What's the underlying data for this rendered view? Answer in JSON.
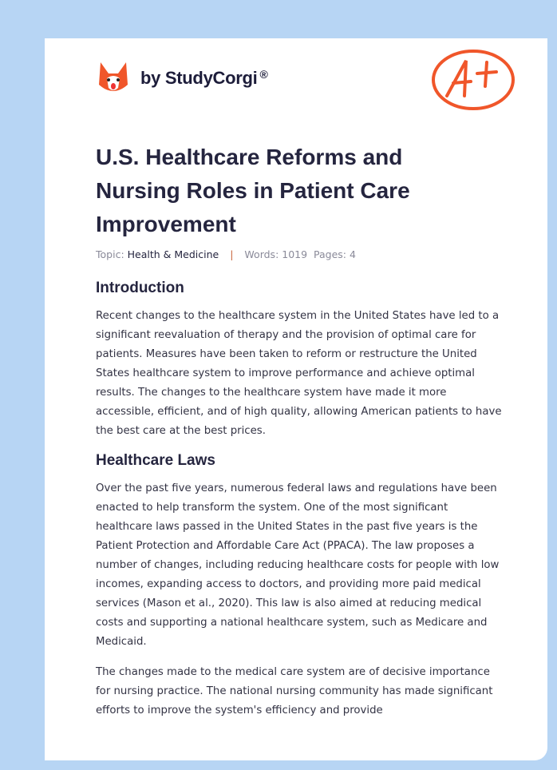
{
  "brand": {
    "name": "by StudyCorgi",
    "reg": "®",
    "grade": "A+"
  },
  "title": "U.S. Healthcare Reforms and Nursing Roles in Patient Care Improvement",
  "meta": {
    "topic_label": "Topic:",
    "topic": "Health & Medicine",
    "sep": "|",
    "words": "Words: 1019",
    "pages": "Pages: 4"
  },
  "sections": [
    {
      "heading": "Introduction",
      "paragraphs": [
        "Recent changes to the healthcare system in the United States have led to a significant reevaluation of therapy and the provision of optimal care for patients. Measures have been taken to reform or restructure the United States healthcare system to improve performance and achieve optimal results. The changes to the healthcare system have made it more accessible, efficient, and of high quality, allowing American patients to have the best care at the best prices."
      ]
    },
    {
      "heading": "Healthcare Laws",
      "paragraphs": [
        "Over the past five years, numerous federal laws and regulations have been enacted to help transform the system. One of the most significant healthcare laws passed in the United States in the past five years is the Patient Protection and Affordable Care Act (PPACA). The law proposes a number of changes, including reducing healthcare costs for people with low incomes, expanding access to doctors, and providing more paid medical services (Mason et al., 2020). This law is also aimed at reducing medical costs and supporting a national healthcare system, such as Medicare and Medicaid.",
        "The changes made to the medical care system are of decisive importance for nursing practice. The national nursing community has made significant efforts to improve the system's efficiency and provide"
      ]
    }
  ]
}
